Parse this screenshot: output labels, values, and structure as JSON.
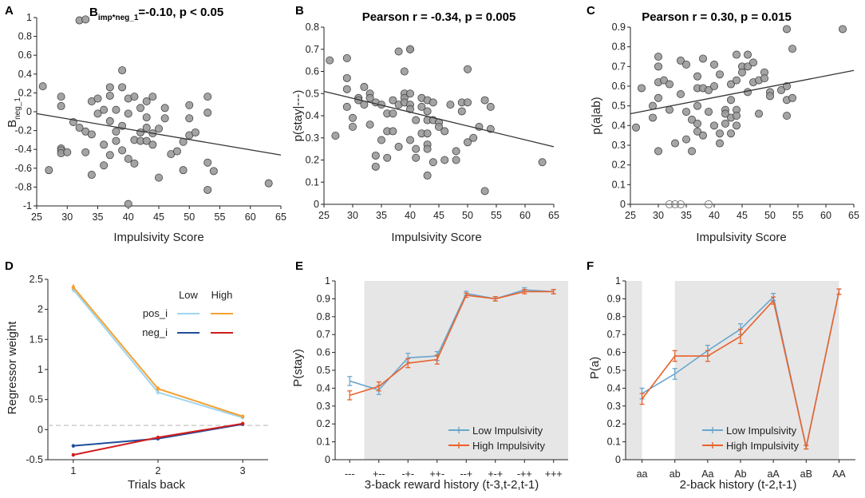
{
  "colors": {
    "point_fill": "#9a9a9a",
    "point_stroke": "#444444",
    "fit_line": "#333333",
    "low": "#6aa6cc",
    "high": "#e8622c",
    "pos_low": "#9ed6f0",
    "pos_high": "#f6a033",
    "neg_low": "#1f4e9c",
    "neg_high": "#d11c1c",
    "shade": "#e6e6e6",
    "dashed": "#bbbbbb"
  },
  "chart_data": [
    {
      "id": "A",
      "type": "scatter",
      "panel_label": "A",
      "title_prefix": "B",
      "title_subscript": "imp*neg_1",
      "title_suffix": "=-0.10, p < 0.05",
      "xlabel": "Impulsivity Score",
      "ylabel_main": "B",
      "ylabel_subscript": "neg_1",
      "xlim": [
        25,
        65
      ],
      "ylim": [
        -1,
        1
      ],
      "xticks": [
        25,
        30,
        35,
        40,
        45,
        50,
        55,
        60,
        65
      ],
      "yticks": [
        -1,
        -0.8,
        -0.6,
        -0.4,
        -0.2,
        0,
        0.2,
        0.4,
        0.6,
        0.8,
        1
      ],
      "ytick_labels": [
        "-1",
        "-0.8",
        "-0.6",
        "-0.4",
        "-0.2",
        "0",
        "0.2",
        "0.4",
        "0.6",
        "0.8",
        "1"
      ],
      "fit": [
        [
          25,
          -0.02
        ],
        [
          65,
          -0.46
        ]
      ],
      "points": [
        [
          26,
          0.27
        ],
        [
          27,
          -0.62
        ],
        [
          29,
          0.16
        ],
        [
          29,
          0.06
        ],
        [
          29,
          -0.39
        ],
        [
          29,
          -0.41
        ],
        [
          29,
          -0.44
        ],
        [
          30,
          -0.43
        ],
        [
          31,
          -0.11
        ],
        [
          32,
          0.97
        ],
        [
          33,
          0.98
        ],
        [
          32,
          -0.17
        ],
        [
          33,
          -0.21
        ],
        [
          33,
          -0.43
        ],
        [
          34,
          0.11
        ],
        [
          34,
          -0.24
        ],
        [
          34,
          -0.67
        ],
        [
          35,
          0.14
        ],
        [
          35,
          -0.02
        ],
        [
          36,
          0.02
        ],
        [
          36,
          -0.35
        ],
        [
          36,
          -0.57
        ],
        [
          37,
          0.26
        ],
        [
          37,
          0.17
        ],
        [
          37,
          -0.1
        ],
        [
          37,
          -0.46
        ],
        [
          38,
          0.02
        ],
        [
          38,
          -0.21
        ],
        [
          38,
          -0.31
        ],
        [
          39,
          0.44
        ],
        [
          39,
          0.26
        ],
        [
          39,
          -0.15
        ],
        [
          39,
          -0.41
        ],
        [
          40,
          0.14
        ],
        [
          40,
          -0.02
        ],
        [
          40,
          -0.5
        ],
        [
          40,
          -0.98
        ],
        [
          41,
          0.16
        ],
        [
          41,
          -0.3
        ],
        [
          41,
          -0.55
        ],
        [
          42,
          0.04
        ],
        [
          42,
          -0.22
        ],
        [
          42,
          -0.31
        ],
        [
          43,
          0.11
        ],
        [
          43,
          -0.06
        ],
        [
          43,
          -0.17
        ],
        [
          43,
          -0.31
        ],
        [
          44,
          0.16
        ],
        [
          44,
          -0.23
        ],
        [
          44,
          -0.35
        ],
        [
          45,
          -0.18
        ],
        [
          45,
          -0.7
        ],
        [
          46,
          0.04
        ],
        [
          46,
          -0.07
        ],
        [
          47,
          -0.45
        ],
        [
          48,
          -0.42
        ],
        [
          49,
          -0.32
        ],
        [
          49,
          -0.62
        ],
        [
          50,
          0.07
        ],
        [
          50,
          -0.07
        ],
        [
          50,
          -0.25
        ],
        [
          51,
          -0.22
        ],
        [
          53,
          0.16
        ],
        [
          53,
          -0.01
        ],
        [
          53,
          -0.54
        ],
        [
          53,
          -0.83
        ],
        [
          54,
          -0.63
        ],
        [
          63,
          -0.76
        ]
      ]
    },
    {
      "id": "B",
      "type": "scatter",
      "panel_label": "B",
      "title": "Pearson r = -0.34, p = 0.005",
      "xlabel": "Impulsivity Score",
      "ylabel": "p(stay|---)",
      "xlim": [
        25,
        65
      ],
      "ylim": [
        0,
        0.8
      ],
      "xticks": [
        25,
        30,
        35,
        40,
        45,
        50,
        55,
        60,
        65
      ],
      "yticks": [
        0,
        0.1,
        0.2,
        0.3,
        0.4,
        0.5,
        0.6,
        0.7,
        0.8
      ],
      "ytick_labels": [
        "0",
        "0.1",
        "0.2",
        "0.3",
        "0.4",
        "0.5",
        "0.6",
        "0.7",
        "0.8"
      ],
      "fit": [
        [
          25,
          0.51
        ],
        [
          65,
          0.26
        ]
      ],
      "points": [
        [
          26,
          0.65
        ],
        [
          27,
          0.31
        ],
        [
          29,
          0.66
        ],
        [
          29,
          0.57
        ],
        [
          29,
          0.52
        ],
        [
          29,
          0.44
        ],
        [
          30,
          0.39
        ],
        [
          30,
          0.35
        ],
        [
          31,
          0.48
        ],
        [
          31,
          0.47
        ],
        [
          32,
          0.53
        ],
        [
          32,
          0.45
        ],
        [
          33,
          0.5
        ],
        [
          33,
          0.48
        ],
        [
          33,
          0.36
        ],
        [
          34,
          0.46
        ],
        [
          34,
          0.22
        ],
        [
          34,
          0.17
        ],
        [
          35,
          0.45
        ],
        [
          35,
          0.29
        ],
        [
          36,
          0.41
        ],
        [
          36,
          0.33
        ],
        [
          36,
          0.21
        ],
        [
          37,
          0.47
        ],
        [
          37,
          0.41
        ],
        [
          37,
          0.33
        ],
        [
          38,
          0.69
        ],
        [
          38,
          0.45
        ],
        [
          38,
          0.26
        ],
        [
          39,
          0.6
        ],
        [
          39,
          0.5
        ],
        [
          39,
          0.48
        ],
        [
          39,
          0.46
        ],
        [
          40,
          0.7
        ],
        [
          40,
          0.7
        ],
        [
          40,
          0.5
        ],
        [
          40,
          0.45
        ],
        [
          40,
          0.43
        ],
        [
          40,
          0.29
        ],
        [
          41,
          0.38
        ],
        [
          41,
          0.25
        ],
        [
          41,
          0.21
        ],
        [
          42,
          0.48
        ],
        [
          42,
          0.44
        ],
        [
          42,
          0.32
        ],
        [
          43,
          0.47
        ],
        [
          43,
          0.42
        ],
        [
          43,
          0.38
        ],
        [
          43,
          0.32
        ],
        [
          43,
          0.27
        ],
        [
          43,
          0.25
        ],
        [
          43,
          0.13
        ],
        [
          44,
          0.46
        ],
        [
          44,
          0.38
        ],
        [
          44,
          0.19
        ],
        [
          45,
          0.37
        ],
        [
          45,
          0.35
        ],
        [
          46,
          0.33
        ],
        [
          46,
          0.2
        ],
        [
          47,
          0.45
        ],
        [
          48,
          0.24
        ],
        [
          48,
          0.2
        ],
        [
          49,
          0.46
        ],
        [
          49,
          0.42
        ],
        [
          50,
          0.61
        ],
        [
          50,
          0.46
        ],
        [
          50,
          0.28
        ],
        [
          51,
          0.3
        ],
        [
          52,
          0.35
        ],
        [
          53,
          0.47
        ],
        [
          53,
          0.06
        ],
        [
          54,
          0.44
        ],
        [
          54,
          0.34
        ],
        [
          63,
          0.19
        ]
      ]
    },
    {
      "id": "C",
      "type": "scatter",
      "panel_label": "C",
      "title": "Pearson r = 0.30, p = 0.015",
      "xlabel": "Impulsivity Score",
      "ylabel": "p(a|ab)",
      "xlim": [
        25,
        65
      ],
      "ylim": [
        0,
        0.9
      ],
      "xticks": [
        25,
        30,
        35,
        40,
        45,
        50,
        55,
        60,
        65
      ],
      "yticks": [
        0,
        0.1,
        0.2,
        0.3,
        0.4,
        0.5,
        0.6,
        0.7,
        0.8,
        0.9
      ],
      "ytick_labels": [
        "0",
        "0.1",
        "0.2",
        "0.3",
        "0.4",
        "0.5",
        "0.6",
        "0.7",
        "0.8",
        "0.9"
      ],
      "fit": [
        [
          25,
          0.46
        ],
        [
          65,
          0.68
        ]
      ],
      "points": [
        [
          26,
          0.39
        ],
        [
          27,
          0.59
        ],
        [
          29,
          0.5
        ],
        [
          29,
          0.44
        ],
        [
          30,
          0.75
        ],
        [
          30,
          0.7
        ],
        [
          30,
          0.62
        ],
        [
          30,
          0.54
        ],
        [
          30,
          0.27
        ],
        [
          31,
          0.63
        ],
        [
          32,
          0.61
        ],
        [
          32,
          0.48
        ],
        [
          33,
          0.31
        ],
        [
          34,
          0.73
        ],
        [
          34,
          0.56
        ],
        [
          35,
          0.71
        ],
        [
          35,
          0.47
        ],
        [
          35,
          0.33
        ],
        [
          36,
          0.43
        ],
        [
          36,
          0.27
        ],
        [
          37,
          0.65
        ],
        [
          37,
          0.59
        ],
        [
          37,
          0.5
        ],
        [
          37,
          0.41
        ],
        [
          37,
          0.37
        ],
        [
          38,
          0.74
        ],
        [
          38,
          0.59
        ],
        [
          38,
          0.35
        ],
        [
          39,
          0.58
        ],
        [
          39,
          0.47
        ],
        [
          40,
          0.71
        ],
        [
          40,
          0.6
        ],
        [
          40,
          0.4
        ],
        [
          41,
          0.66
        ],
        [
          41,
          0.36
        ],
        [
          41,
          0.31
        ],
        [
          42,
          0.48
        ],
        [
          42,
          0.46
        ],
        [
          42,
          0.41
        ],
        [
          43,
          0.61
        ],
        [
          43,
          0.53
        ],
        [
          43,
          0.44
        ],
        [
          43,
          0.36
        ],
        [
          44,
          0.76
        ],
        [
          44,
          0.63
        ],
        [
          44,
          0.48
        ],
        [
          44,
          0.45
        ],
        [
          44,
          0.4
        ],
        [
          45,
          0.7
        ],
        [
          45,
          0.67
        ],
        [
          46,
          0.76
        ],
        [
          46,
          0.7
        ],
        [
          46,
          0.57
        ],
        [
          47,
          0.72
        ],
        [
          47,
          0.62
        ],
        [
          48,
          0.63
        ],
        [
          48,
          0.46
        ],
        [
          49,
          0.67
        ],
        [
          49,
          0.64
        ],
        [
          50,
          0.57
        ],
        [
          50,
          0.55
        ],
        [
          52,
          0.58
        ],
        [
          53,
          0.89
        ],
        [
          53,
          0.6
        ],
        [
          53,
          0.53
        ],
        [
          53,
          0.45
        ],
        [
          54,
          0.79
        ],
        [
          54,
          0.54
        ],
        [
          63,
          0.89
        ]
      ],
      "zero_points": [
        [
          32,
          0
        ],
        [
          33,
          0
        ],
        [
          34,
          0
        ],
        [
          39,
          0
        ]
      ]
    },
    {
      "id": "D",
      "type": "line",
      "panel_label": "D",
      "xlabel": "Trials back",
      "ylabel": "Regressor weight",
      "x": [
        1,
        2,
        3
      ],
      "xlim": [
        0.7,
        3.3
      ],
      "ylim": [
        -0.5,
        2.5
      ],
      "yticks": [
        -0.5,
        0,
        0.5,
        1,
        1.5,
        2,
        2.5
      ],
      "ytick_labels": [
        "-0.5",
        "0",
        "0.5",
        "1",
        "1.5",
        "2",
        "2.5"
      ],
      "reference_line": 0.07,
      "legend": {
        "col_low": "Low",
        "col_high": "High",
        "row_pos": "pos_i",
        "row_neg": "neg_i"
      },
      "series": [
        {
          "name": "pos_i Low",
          "color_key": "pos_low",
          "values": [
            2.33,
            0.62,
            0.2
          ],
          "err": [
            0.05,
            0.04,
            0.03
          ]
        },
        {
          "name": "pos_i High",
          "color_key": "pos_high",
          "values": [
            2.37,
            0.68,
            0.22
          ],
          "err": [
            0.05,
            0.04,
            0.03
          ]
        },
        {
          "name": "neg_i Low",
          "color_key": "neg_low",
          "values": [
            -0.27,
            -0.15,
            0.09
          ],
          "err": [
            0.03,
            0.03,
            0.03
          ]
        },
        {
          "name": "neg_i High",
          "color_key": "neg_high",
          "values": [
            -0.42,
            -0.13,
            0.1
          ],
          "err": [
            0.03,
            0.03,
            0.03
          ]
        }
      ]
    },
    {
      "id": "E",
      "type": "line",
      "panel_label": "E",
      "xlabel": "3-back reward history (t-3,t-2,t-1)",
      "ylabel": "P(stay)",
      "categories": [
        "---",
        "+--",
        "-+-",
        "++-",
        "--+",
        "+-+",
        "-++",
        "+++"
      ],
      "ylim": [
        0,
        1
      ],
      "yticks": [
        0,
        0.1,
        0.2,
        0.3,
        0.4,
        0.5,
        0.6,
        0.7,
        0.8,
        0.9,
        1
      ],
      "ytick_labels": [
        "0",
        "0.1",
        "0.2",
        "0.3",
        "0.4",
        "0.5",
        "0.6",
        "0.7",
        "0.8",
        "0.9",
        "1"
      ],
      "shaded_categories": [
        1,
        7
      ],
      "series": [
        {
          "name": "Low Impulsivity",
          "color_key": "low",
          "values": [
            0.44,
            0.39,
            0.57,
            0.58,
            0.93,
            0.9,
            0.95,
            0.94
          ],
          "err": [
            0.025,
            0.025,
            0.025,
            0.025,
            0.012,
            0.012,
            0.012,
            0.012
          ]
        },
        {
          "name": "High Impulsivity",
          "color_key": "high",
          "values": [
            0.36,
            0.41,
            0.54,
            0.56,
            0.92,
            0.9,
            0.94,
            0.94
          ],
          "err": [
            0.025,
            0.025,
            0.025,
            0.025,
            0.012,
            0.012,
            0.012,
            0.012
          ]
        }
      ]
    },
    {
      "id": "F",
      "type": "line",
      "panel_label": "F",
      "xlabel": "2-back history (t-2,t-1)",
      "ylabel": "P(a)",
      "categories": [
        "aa",
        "ab",
        "Aa",
        "Ab",
        "aA",
        "aB",
        "AA"
      ],
      "ylim": [
        0,
        1
      ],
      "yticks": [
        0,
        0.1,
        0.2,
        0.3,
        0.4,
        0.5,
        0.6,
        0.7,
        0.8,
        0.9,
        1
      ],
      "ytick_labels": [
        "0",
        "0.1",
        "0.2",
        "0.3",
        "0.4",
        "0.5",
        "0.6",
        "0.7",
        "0.8",
        "0.9",
        "1"
      ],
      "shaded_ranges": [
        [
          0,
          0.5
        ],
        [
          1.5,
          6.5
        ]
      ],
      "series": [
        {
          "name": "Low Impulsivity",
          "color_key": "low",
          "values": [
            0.37,
            0.48,
            0.61,
            0.73,
            0.91,
            0.07,
            0.94
          ],
          "err": [
            0.03,
            0.03,
            0.03,
            0.03,
            0.02,
            0.01,
            0.015
          ]
        },
        {
          "name": "High Impulsivity",
          "color_key": "high",
          "values": [
            0.34,
            0.58,
            0.58,
            0.69,
            0.89,
            0.07,
            0.94
          ],
          "err": [
            0.03,
            0.03,
            0.03,
            0.04,
            0.02,
            0.01,
            0.015
          ]
        }
      ]
    }
  ]
}
